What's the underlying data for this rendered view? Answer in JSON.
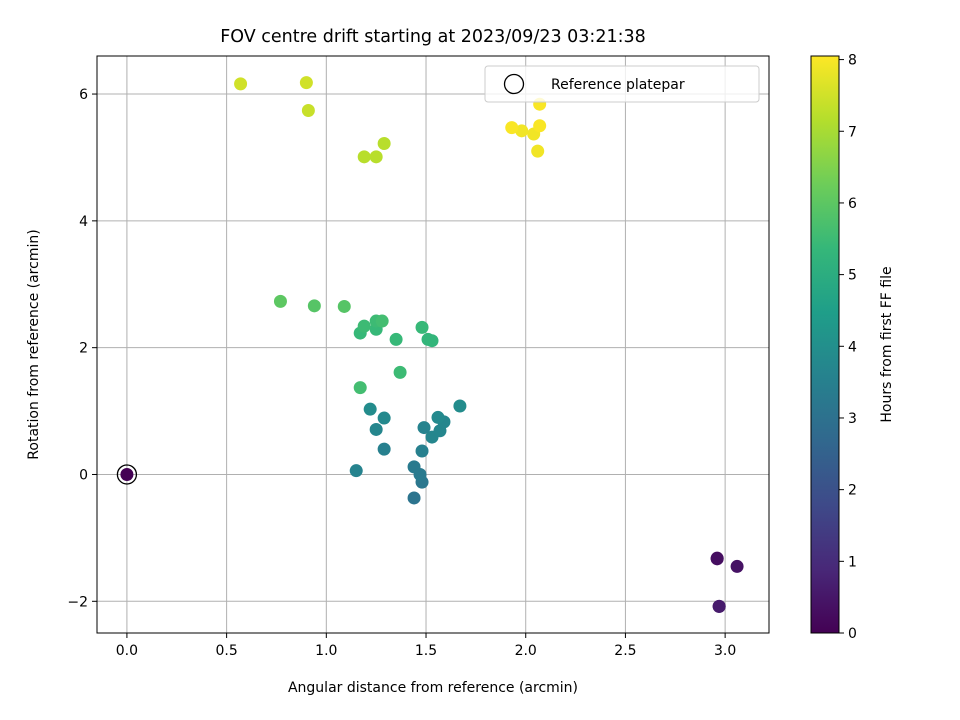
{
  "chart_data": {
    "type": "scatter",
    "title": "FOV centre drift starting at 2023/09/23 03:21:38",
    "xlabel": "Angular distance from reference (arcmin)",
    "ylabel": "Rotation from reference (arcmin)",
    "xlim": [
      -0.15,
      3.22
    ],
    "ylim": [
      -2.5,
      6.6
    ],
    "xticks": [
      0.0,
      0.5,
      1.0,
      1.5,
      2.0,
      2.5,
      3.0
    ],
    "xtick_labels": [
      "0.0",
      "0.5",
      "1.0",
      "1.5",
      "2.0",
      "2.5",
      "3.0"
    ],
    "yticks": [
      -2,
      0,
      2,
      4,
      6
    ],
    "ytick_labels": [
      "−2",
      "0",
      "2",
      "4",
      "6"
    ],
    "grid": true,
    "legend": {
      "placement": "upper right",
      "entries": [
        {
          "label": "Reference platepar",
          "marker": "open-circle"
        }
      ]
    },
    "colorbar": {
      "label": "Hours from first FF file",
      "colormap": "viridis",
      "range": [
        0,
        8.05
      ],
      "ticks": [
        0,
        1,
        2,
        3,
        4,
        5,
        6,
        7,
        8
      ],
      "tick_labels": [
        "0",
        "1",
        "2",
        "3",
        "4",
        "5",
        "6",
        "7",
        "8"
      ]
    },
    "reference_point": {
      "x": 0.0,
      "y": 0.0,
      "hours": 0.0
    },
    "points": [
      {
        "x": 2.96,
        "y": -1.32,
        "hours": 0.2
      },
      {
        "x": 2.96,
        "y": -1.33,
        "hours": 0.3
      },
      {
        "x": 3.06,
        "y": -1.45,
        "hours": 0.4
      },
      {
        "x": 2.97,
        "y": -2.08,
        "hours": 0.5
      },
      {
        "x": 2.97,
        "y": -2.08,
        "hours": 0.6
      },
      {
        "x": 1.44,
        "y": -0.37,
        "hours": 3.1
      },
      {
        "x": 1.48,
        "y": -0.12,
        "hours": 3.2
      },
      {
        "x": 1.47,
        "y": 0.0,
        "hours": 3.3
      },
      {
        "x": 1.44,
        "y": 0.12,
        "hours": 3.3
      },
      {
        "x": 1.15,
        "y": 0.06,
        "hours": 3.6
      },
      {
        "x": 1.29,
        "y": 0.4,
        "hours": 3.5
      },
      {
        "x": 1.48,
        "y": 0.37,
        "hours": 3.5
      },
      {
        "x": 1.49,
        "y": 0.74,
        "hours": 3.6
      },
      {
        "x": 1.25,
        "y": 0.71,
        "hours": 3.7
      },
      {
        "x": 1.53,
        "y": 0.59,
        "hours": 3.7
      },
      {
        "x": 1.57,
        "y": 0.69,
        "hours": 3.7
      },
      {
        "x": 1.59,
        "y": 0.83,
        "hours": 3.7
      },
      {
        "x": 1.56,
        "y": 0.9,
        "hours": 3.8
      },
      {
        "x": 1.29,
        "y": 0.89,
        "hours": 3.8
      },
      {
        "x": 1.22,
        "y": 1.03,
        "hours": 3.9
      },
      {
        "x": 1.67,
        "y": 1.08,
        "hours": 3.9
      },
      {
        "x": 1.17,
        "y": 1.37,
        "hours": 5.6
      },
      {
        "x": 1.37,
        "y": 1.61,
        "hours": 5.5
      },
      {
        "x": 1.35,
        "y": 2.13,
        "hours": 5.4
      },
      {
        "x": 1.17,
        "y": 2.23,
        "hours": 5.4
      },
      {
        "x": 1.51,
        "y": 2.13,
        "hours": 5.3
      },
      {
        "x": 1.53,
        "y": 2.11,
        "hours": 5.3
      },
      {
        "x": 1.48,
        "y": 2.32,
        "hours": 5.4
      },
      {
        "x": 1.25,
        "y": 2.29,
        "hours": 5.4
      },
      {
        "x": 1.19,
        "y": 2.34,
        "hours": 5.5
      },
      {
        "x": 1.25,
        "y": 2.42,
        "hours": 5.5
      },
      {
        "x": 1.28,
        "y": 2.42,
        "hours": 5.6
      },
      {
        "x": 0.94,
        "y": 2.66,
        "hours": 5.9
      },
      {
        "x": 1.09,
        "y": 2.65,
        "hours": 5.9
      },
      {
        "x": 0.77,
        "y": 2.73,
        "hours": 6.0
      },
      {
        "x": 1.19,
        "y": 5.01,
        "hours": 7.2
      },
      {
        "x": 1.25,
        "y": 5.01,
        "hours": 7.2
      },
      {
        "x": 1.29,
        "y": 5.22,
        "hours": 7.2
      },
      {
        "x": 0.91,
        "y": 5.74,
        "hours": 7.4
      },
      {
        "x": 0.57,
        "y": 6.16,
        "hours": 7.5
      },
      {
        "x": 0.9,
        "y": 6.18,
        "hours": 7.5
      },
      {
        "x": 2.06,
        "y": 5.1,
        "hours": 7.9
      },
      {
        "x": 2.04,
        "y": 5.37,
        "hours": 7.9
      },
      {
        "x": 1.98,
        "y": 5.42,
        "hours": 7.9
      },
      {
        "x": 1.93,
        "y": 5.47,
        "hours": 8.0
      },
      {
        "x": 2.07,
        "y": 5.5,
        "hours": 8.0
      },
      {
        "x": 2.07,
        "y": 5.84,
        "hours": 8.0
      }
    ]
  }
}
